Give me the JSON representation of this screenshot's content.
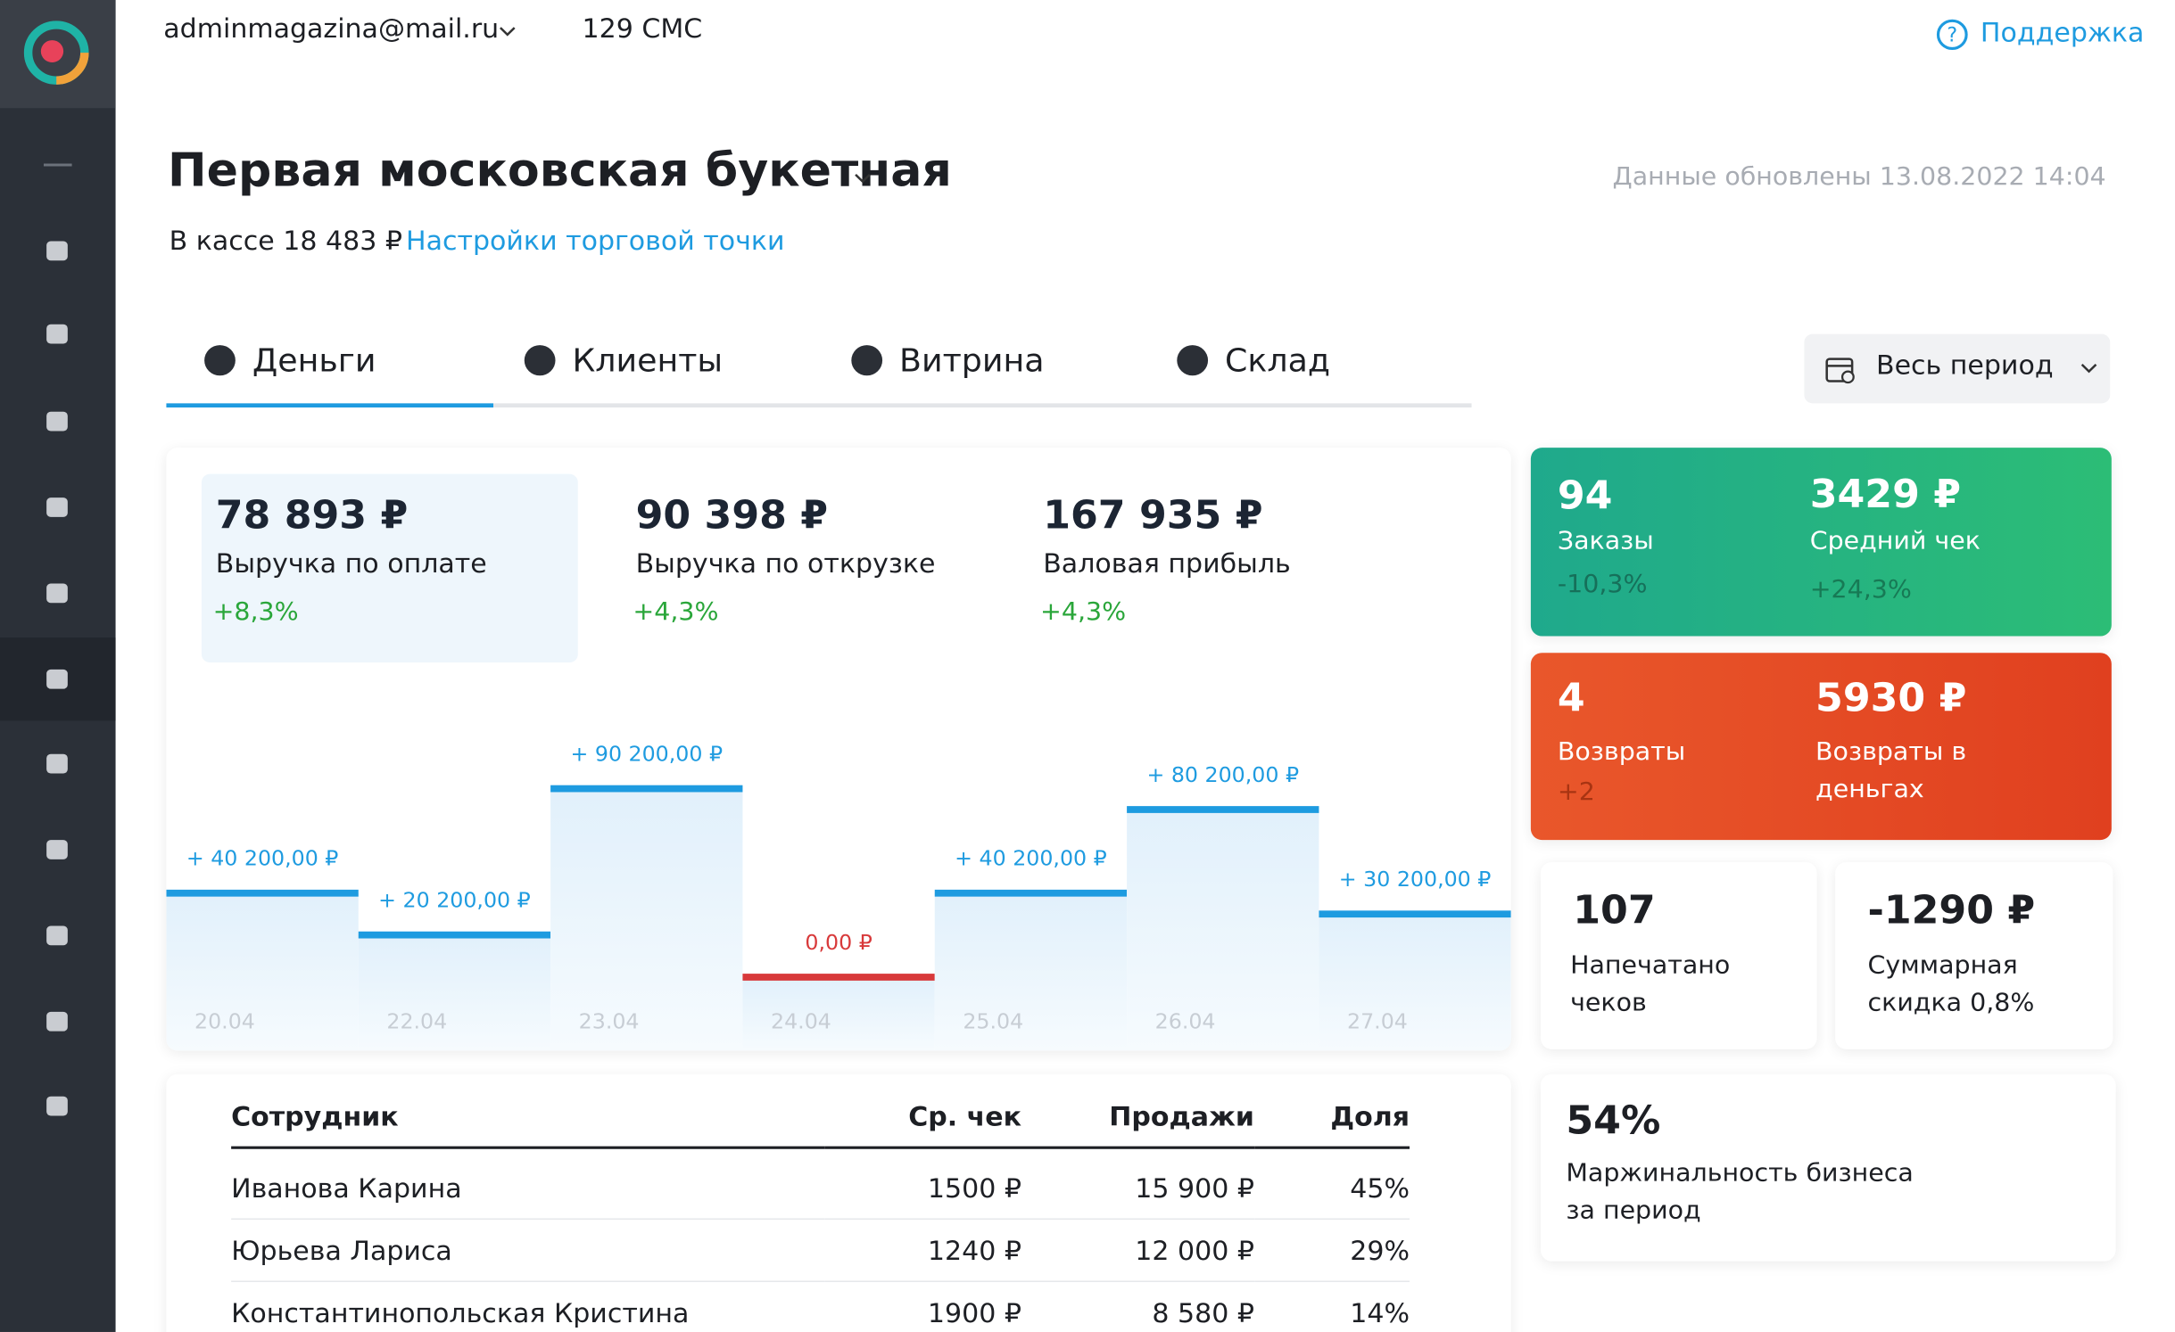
{
  "header": {
    "account": "adminmagazina@mail.ru",
    "sms": "129 СМС",
    "support": "Поддержка"
  },
  "store": {
    "title": "Первая московская букетная",
    "updated": "Данные обновлены 13.08.2022 14:04",
    "cash": "В кассе 18 483 ₽",
    "settings_link": "Настройки торговой точки"
  },
  "tabs": [
    "Деньги",
    "Клиенты",
    "Витрина",
    "Склад"
  ],
  "period": "Весь период",
  "kpis": [
    {
      "value": "78 893 ₽",
      "label": "Выручка по оплате",
      "change": "+8,3%"
    },
    {
      "value": "90 398 ₽",
      "label": "Выручка по открузке",
      "change": "+4,3%"
    },
    {
      "value": "167 935 ₽",
      "label": "Валовая прибыль",
      "change": "+4,3%"
    }
  ],
  "chart_data": {
    "type": "step",
    "categories": [
      "20.04",
      "22.04",
      "23.04",
      "24.04",
      "25.04",
      "26.04",
      "27.04"
    ],
    "values": [
      40200,
      20200,
      90200,
      0,
      40200,
      80200,
      30200
    ],
    "value_labels": [
      "+ 40 200,00 ₽",
      "+ 20 200,00 ₽",
      "+ 90 200,00 ₽",
      "0,00 ₽",
      "+ 40 200,00 ₽",
      "+ 80 200,00 ₽",
      "+ 30 200,00 ₽"
    ],
    "color": "#1e9be0",
    "zero_color": "#d8393a"
  },
  "stats": {
    "orders": {
      "value": "94",
      "label": "Заказы",
      "change": "-10,3%"
    },
    "avg_check": {
      "value": "3429 ₽",
      "label": "Средний чек",
      "change": "+24,3%"
    },
    "returns": {
      "value": "4",
      "label": "Возвраты",
      "change": "+2"
    },
    "returns_money": {
      "value": "5930 ₽",
      "label": "Возвраты в деньгах"
    },
    "receipts": {
      "value": "107",
      "label": "Напечатано чеков"
    },
    "discount": {
      "value": "-1290 ₽",
      "label": "Суммарная скидка 0,8%"
    },
    "margin": {
      "value": "54%",
      "label": "Маржинальность бизнеса за период"
    }
  },
  "table": {
    "columns": [
      "Сотрудник",
      "Ср. чек",
      "Продажи",
      "Доля"
    ],
    "rows": [
      [
        "Иванова Карина",
        "1500 ₽",
        "15 900 ₽",
        "45%"
      ],
      [
        "Юрьева Лариса",
        "1240 ₽",
        "12 000 ₽",
        "29%"
      ],
      [
        "Константинопольская Кристина",
        "1900 ₽",
        "8 580 ₽",
        "14%"
      ]
    ]
  }
}
